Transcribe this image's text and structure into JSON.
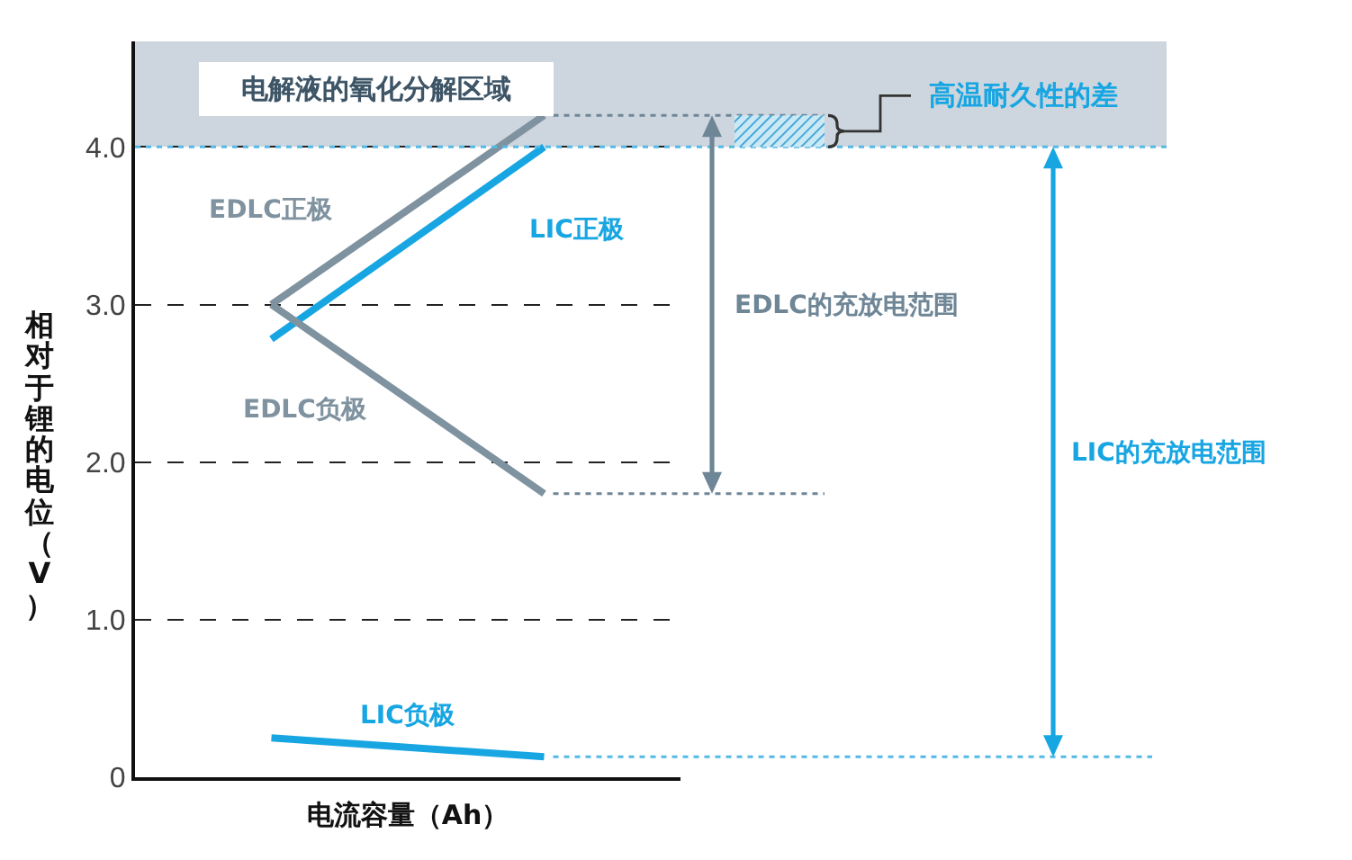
{
  "chart_data": {
    "type": "line",
    "xlabel": "电流容量（Ah）",
    "ylabel": "相对于锂的电位（V）",
    "annotations": [
      "EDLC的充放电范围",
      "LIC的充放电范围",
      "高温耐久性的差"
    ],
    "categories": [
      null,
      null
    ],
    "series": [
      {
        "name": "EDLC正极",
        "color": "#7f929f",
        "values": [
          3.0,
          4.2
        ]
      },
      {
        "name": "LIC正极",
        "color": "#18a6e2",
        "values": [
          2.78,
          4.0
        ]
      },
      {
        "name": "EDLC负极",
        "color": "#7f929f",
        "values": [
          3.0,
          1.8
        ]
      },
      {
        "name": "LIC负极",
        "color": "#18a6e2",
        "values": [
          0.25,
          0.13
        ]
      }
    ],
    "ylim": [
      0,
      4.67
    ],
    "yticks": [
      0,
      {
        "value": 1,
        "label": "1.0"
      },
      {
        "value": 2,
        "label": "2.0"
      },
      {
        "value": 3,
        "label": "3.0"
      },
      {
        "value": 4,
        "label": "4.0"
      }
    ],
    "grid": "y",
    "legend": false,
    "marker": "none",
    "line_style": "solid",
    "bands": [
      {
        "axis": "y",
        "from": 4.0,
        "to": 4.67,
        "label": "电解液的氧化分解区域",
        "color": "#cdd6de"
      }
    ],
    "ref_lines": [
      {
        "axis": "y",
        "value": 4.2,
        "color": "#6f8697",
        "line_style": "dashed"
      },
      {
        "axis": "y",
        "value": 1.8,
        "color": "#6f8697",
        "line_style": "dashed"
      },
      {
        "axis": "y",
        "value": 4.0,
        "color": "#55b9e7",
        "line_style": "dashed"
      },
      {
        "axis": "y",
        "value": 0.13,
        "color": "#55b9e7",
        "line_style": "dashed"
      }
    ]
  }
}
